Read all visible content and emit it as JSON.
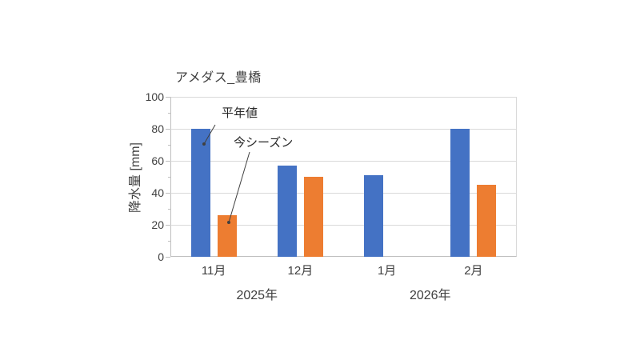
{
  "page": {
    "background": "#ffffff"
  },
  "chart_data": {
    "type": "bar",
    "title": "アメダス_豊橋",
    "xlabel": "",
    "ylabel": "降水量 [mm]",
    "ylim": [
      0,
      100
    ],
    "yticks": [
      0,
      20,
      40,
      60,
      80,
      100
    ],
    "minor_tick_step": 10,
    "grid": "horizontal",
    "legend_position": "none",
    "categories": [
      "11月",
      "12月",
      "1月",
      "2月"
    ],
    "year_groups": [
      {
        "label": "2025年",
        "span": [
          0,
          1
        ]
      },
      {
        "label": "2026年",
        "span": [
          2,
          3
        ]
      }
    ],
    "series": [
      {
        "name": "平年値",
        "color": "#4472C4",
        "values": [
          80,
          57,
          51,
          80
        ]
      },
      {
        "name": "今シーズン",
        "color": "#ED7D31",
        "values": [
          26,
          50,
          null,
          45
        ]
      }
    ],
    "annotations": [
      {
        "text": "平年値",
        "points_to": "blue bar of 11月"
      },
      {
        "text": "今シーズン",
        "points_to": "orange bar of 11月"
      }
    ],
    "colors": {
      "gridline": "#D9D9D9",
      "axis_line": "#BFBFBF",
      "text": "#404040",
      "annotation_line": "#404040"
    }
  }
}
